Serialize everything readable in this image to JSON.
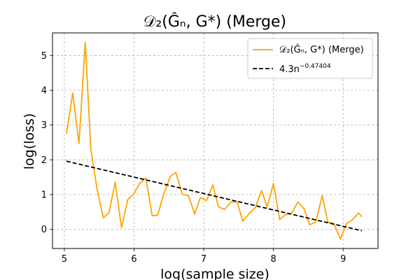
{
  "chart_data": {
    "type": "line",
    "title": "𝒟₂(Ĝₙ, G*) (Merge)",
    "xlabel": "log(sample size)",
    "ylabel": "log(loss)",
    "xlim": [
      4.83,
      9.5
    ],
    "ylim": [
      -0.55,
      5.65
    ],
    "xticks": [
      "5",
      "6",
      "7",
      "8",
      "9"
    ],
    "yticks": [
      "0",
      "1",
      "2",
      "3",
      "4",
      "5"
    ],
    "grid": true,
    "legend_position": "top-right",
    "legend": [
      "𝒟₂(Ĝₙ, G*) (Merge)",
      "4.3n^−0.47404"
    ],
    "fit_label_base": "4.3n",
    "fit_label_exp": "−0.47404",
    "series": [
      {
        "name": "𝒟₂(Ĝₙ, G*) (Merge)",
        "color": "#FFA500",
        "style": "solid",
        "x": [
          5.03,
          5.12,
          5.21,
          5.3,
          5.38,
          5.47,
          5.56,
          5.64,
          5.73,
          5.82,
          5.91,
          5.99,
          6.08,
          6.17,
          6.26,
          6.34,
          6.43,
          6.52,
          6.6,
          6.69,
          6.78,
          6.87,
          6.95,
          7.04,
          7.13,
          7.21,
          7.3,
          7.39,
          7.48,
          7.56,
          7.65,
          7.74,
          7.83,
          7.91,
          8.0,
          8.09,
          8.17,
          8.26,
          8.35,
          8.44,
          8.52,
          8.61,
          8.7,
          8.78,
          8.87,
          8.96,
          9.05,
          9.13,
          9.22,
          9.27
        ],
        "y": [
          2.75,
          3.92,
          2.47,
          5.38,
          2.3,
          1.15,
          0.33,
          0.48,
          1.36,
          0.05,
          0.86,
          1.0,
          1.32,
          1.48,
          0.39,
          0.41,
          1.05,
          1.52,
          1.64,
          1.01,
          0.97,
          0.44,
          0.91,
          0.83,
          1.28,
          0.65,
          0.57,
          0.79,
          0.79,
          0.23,
          0.45,
          0.63,
          1.12,
          0.64,
          1.32,
          0.28,
          0.42,
          0.46,
          0.79,
          0.59,
          0.13,
          0.22,
          0.97,
          0.21,
          0.16,
          -0.28,
          0.17,
          0.27,
          0.47,
          0.36
        ]
      },
      {
        "name": "4.3n^−0.47404",
        "color": "#000000",
        "style": "dashed",
        "x": [
          5.03,
          9.27
        ],
        "y": [
          1.96,
          -0.04
        ]
      }
    ]
  }
}
